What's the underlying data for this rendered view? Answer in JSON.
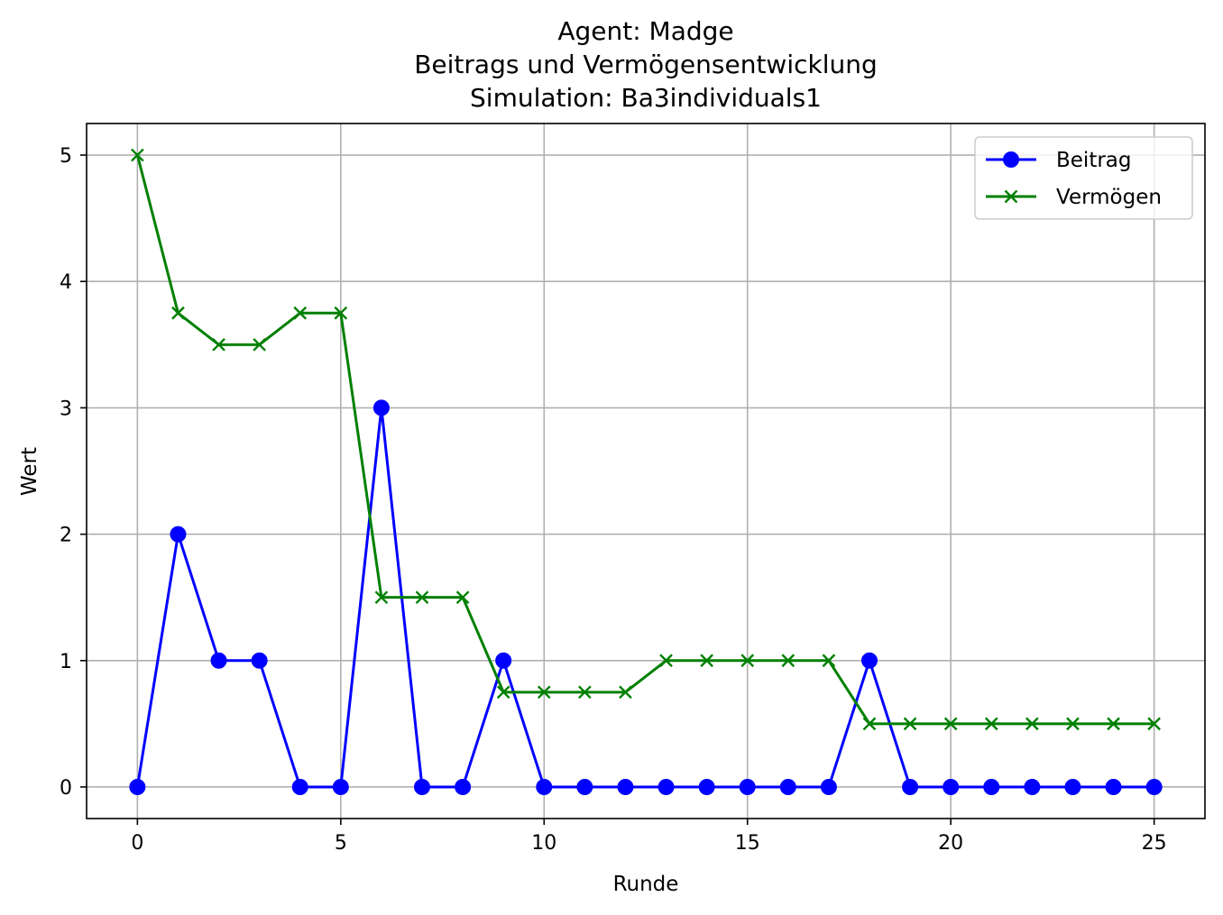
{
  "chart_data": {
    "type": "line",
    "title": "Agent: Madge\nBeitrags und Vermögensentwicklung\nSimulation: Ba3individuals1",
    "title_lines": [
      "Agent: Madge",
      "Beitrags und Vermögensentwicklung",
      "Simulation: Ba3individuals1"
    ],
    "xlabel": "Runde",
    "ylabel": "Wert",
    "xlim": [
      -1.25,
      26.25
    ],
    "ylim": [
      -0.25,
      5.25
    ],
    "xticks": [
      0,
      5,
      10,
      15,
      20,
      25
    ],
    "yticks": [
      0,
      1,
      2,
      3,
      4,
      5
    ],
    "grid": true,
    "legend_position": "top-right",
    "x": [
      0,
      1,
      2,
      3,
      4,
      5,
      6,
      7,
      8,
      9,
      10,
      11,
      12,
      13,
      14,
      15,
      16,
      17,
      18,
      19,
      20,
      21,
      22,
      23,
      24,
      25
    ],
    "series": [
      {
        "name": "Beitrag",
        "color": "#0000ff",
        "marker": "circle",
        "values": [
          0,
          2,
          1,
          1,
          0,
          0,
          3,
          0,
          0,
          1,
          0,
          0,
          0,
          0,
          0,
          0,
          0,
          0,
          1,
          0,
          0,
          0,
          0,
          0,
          0,
          0
        ]
      },
      {
        "name": "Vermögen",
        "color": "#008000",
        "marker": "x",
        "values": [
          5,
          3.75,
          3.5,
          3.5,
          3.75,
          3.75,
          1.5,
          1.5,
          1.5,
          0.75,
          0.75,
          0.75,
          0.75,
          1,
          1,
          1,
          1,
          1,
          0.5,
          0.5,
          0.5,
          0.5,
          0.5,
          0.5,
          0.5,
          0.5
        ]
      }
    ]
  }
}
